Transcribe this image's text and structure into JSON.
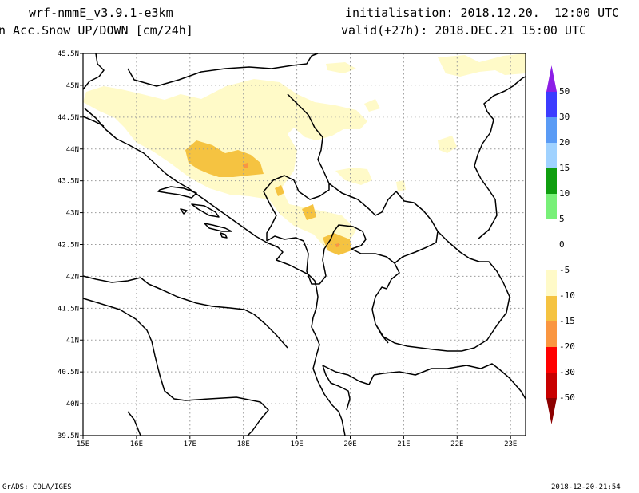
{
  "header": {
    "model": "wrf-nmmE_v3.9.1-e3km",
    "field": "n Acc.Snow UP/DOWN [cm/24h]",
    "init": "initialisation: 2018.12.20.  12:00 UTC",
    "valid": "valid(+27h): 2018.DEC.21 15:00 UTC"
  },
  "map": {
    "lat_labels": [
      "45.5N",
      "45N",
      "44.5N",
      "44N",
      "43.5N",
      "43N",
      "42.5N",
      "42N",
      "41.5N",
      "41N",
      "40.5N",
      "40N",
      "39.5N"
    ],
    "lon_labels": [
      "15E",
      "16E",
      "17E",
      "18E",
      "19E",
      "20E",
      "21E",
      "22E",
      "23E"
    ]
  },
  "colorbar": {
    "labels": [
      "50",
      "30",
      "20",
      "15",
      "10",
      "5",
      "0",
      "-5",
      "-10",
      "-15",
      "-20",
      "-30",
      "-50"
    ],
    "colors": [
      "#8c1ee6",
      "#3c3cff",
      "#5a9bf5",
      "#a0d2ff",
      "#0f9e0f",
      "#78f078",
      "#ffffff",
      "#ffffff",
      "#fffac8",
      "#f5c341",
      "#fa9641",
      "#ff0000",
      "#c80000",
      "#8c0000"
    ]
  },
  "footer": {
    "left": "GrADS: COLA/IGES",
    "right": "2018-12-20-21:54"
  }
}
